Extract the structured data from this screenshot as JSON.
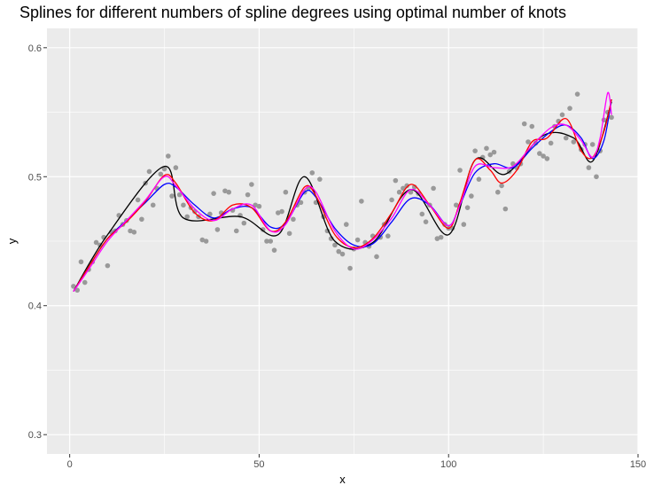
{
  "chart_data": {
    "type": "scatter",
    "title": "Splines for different numbers of spline degrees using optimal number of knots",
    "xlabel": "x",
    "ylabel": "y",
    "xlim": [
      -6,
      150
    ],
    "ylim": [
      0.285,
      0.615
    ],
    "x_ticks": [
      0,
      50,
      100,
      150
    ],
    "y_ticks": [
      0.3,
      0.4,
      0.5,
      0.6
    ],
    "x_tick_labels": [
      "0",
      "50",
      "100",
      "150"
    ],
    "y_tick_labels": [
      "0.3",
      "0.4",
      "0.5",
      "0.6"
    ],
    "grid": true,
    "background": "#ebebeb",
    "grid_color": "#ffffff",
    "points": {
      "color": "#999999",
      "x": [
        1,
        2,
        3,
        4,
        5,
        6,
        7,
        8,
        9,
        10,
        11,
        12,
        13,
        14,
        15,
        16,
        17,
        18,
        19,
        20,
        21,
        22,
        23,
        24,
        25,
        26,
        27,
        28,
        29,
        30,
        31,
        32,
        33,
        34,
        35,
        36,
        37,
        38,
        39,
        40,
        41,
        42,
        43,
        44,
        45,
        46,
        47,
        48,
        49,
        50,
        51,
        52,
        53,
        54,
        55,
        56,
        57,
        58,
        59,
        60,
        61,
        62,
        63,
        64,
        65,
        66,
        67,
        68,
        69,
        70,
        71,
        72,
        73,
        74,
        75,
        76,
        77,
        78,
        79,
        80,
        81,
        82,
        83,
        84,
        85,
        86,
        87,
        88,
        89,
        90,
        91,
        92,
        93,
        94,
        95,
        96,
        97,
        98,
        99,
        100,
        101,
        102,
        103,
        104,
        105,
        106,
        107,
        108,
        109,
        110,
        111,
        112,
        113,
        114,
        115,
        116,
        117,
        118,
        119,
        120,
        121,
        122,
        123,
        124,
        125,
        126,
        127,
        128,
        129,
        130,
        131,
        132,
        133,
        134,
        135,
        136,
        137,
        138,
        139,
        140,
        141,
        142,
        143
      ],
      "y": [
        0.415,
        0.412,
        0.434,
        0.418,
        0.428,
        0.434,
        0.449,
        0.447,
        0.453,
        0.431,
        0.457,
        0.458,
        0.47,
        0.463,
        0.466,
        0.458,
        0.457,
        0.482,
        0.467,
        0.495,
        0.504,
        0.478,
        0.491,
        0.502,
        0.506,
        0.516,
        0.485,
        0.507,
        0.486,
        0.478,
        0.469,
        0.476,
        0.473,
        0.469,
        0.451,
        0.45,
        0.471,
        0.487,
        0.459,
        0.472,
        0.489,
        0.488,
        0.474,
        0.458,
        0.47,
        0.464,
        0.486,
        0.494,
        0.478,
        0.477,
        0.459,
        0.45,
        0.45,
        0.443,
        0.472,
        0.473,
        0.488,
        0.456,
        0.467,
        0.478,
        0.48,
        0.488,
        0.491,
        0.503,
        0.48,
        0.498,
        0.469,
        0.458,
        0.452,
        0.447,
        0.442,
        0.44,
        0.463,
        0.429,
        0.444,
        0.451,
        0.481,
        0.449,
        0.446,
        0.454,
        0.438,
        0.453,
        0.463,
        0.454,
        0.482,
        0.497,
        0.488,
        0.491,
        0.493,
        0.488,
        0.492,
        0.487,
        0.471,
        0.465,
        0.478,
        0.491,
        0.452,
        0.453,
        0.463,
        0.46,
        0.46,
        0.478,
        0.505,
        0.463,
        0.476,
        0.485,
        0.52,
        0.498,
        0.515,
        0.522,
        0.517,
        0.519,
        0.488,
        0.493,
        0.475,
        0.504,
        0.51,
        0.507,
        0.51,
        0.541,
        0.527,
        0.539,
        0.526,
        0.518,
        0.516,
        0.514,
        0.526,
        0.539,
        0.543,
        0.548,
        0.53,
        0.553,
        0.527,
        0.564,
        0.521,
        0.525,
        0.507,
        0.525,
        0.5,
        0.52,
        0.544,
        0.55,
        0.546
      ]
    },
    "series": [
      {
        "color": "#000000",
        "x": [
          1,
          10,
          25,
          30,
          45,
          55,
          62,
          70,
          80,
          90,
          100,
          107,
          115,
          125,
          133,
          138,
          143
        ],
        "y": [
          0.411,
          0.455,
          0.508,
          0.468,
          0.469,
          0.455,
          0.5,
          0.45,
          0.449,
          0.49,
          0.455,
          0.513,
          0.502,
          0.532,
          0.53,
          0.512,
          0.558
        ]
      },
      {
        "color": "#0000ff",
        "x": [
          1,
          5,
          10,
          15,
          20,
          25,
          28,
          33,
          38,
          43,
          48,
          53,
          57,
          62,
          65,
          70,
          75,
          80,
          85,
          90,
          95,
          100,
          103,
          107,
          112,
          117,
          122,
          127,
          131,
          135,
          138,
          141,
          143
        ],
        "y": [
          0.411,
          0.43,
          0.452,
          0.466,
          0.48,
          0.494,
          0.492,
          0.478,
          0.468,
          0.475,
          0.476,
          0.461,
          0.464,
          0.488,
          0.484,
          0.46,
          0.447,
          0.448,
          0.465,
          0.483,
          0.478,
          0.462,
          0.478,
          0.503,
          0.51,
          0.507,
          0.522,
          0.535,
          0.54,
          0.53,
          0.514,
          0.528,
          0.56
        ]
      },
      {
        "color": "#ff0000",
        "x": [
          1,
          5,
          10,
          15,
          20,
          25,
          28,
          33,
          38,
          43,
          48,
          53,
          57,
          62,
          65,
          70,
          75,
          80,
          85,
          90,
          95,
          100,
          103,
          107,
          111,
          114,
          118,
          122,
          126,
          131,
          135,
          138,
          141,
          143
        ],
        "y": [
          0.411,
          0.43,
          0.452,
          0.465,
          0.481,
          0.501,
          0.495,
          0.472,
          0.466,
          0.478,
          0.476,
          0.458,
          0.465,
          0.492,
          0.485,
          0.455,
          0.445,
          0.452,
          0.472,
          0.494,
          0.478,
          0.46,
          0.48,
          0.513,
          0.505,
          0.495,
          0.505,
          0.527,
          0.53,
          0.545,
          0.52,
          0.515,
          0.535,
          0.56
        ]
      },
      {
        "color": "#ff00ff",
        "x": [
          1,
          5,
          10,
          15,
          20,
          25,
          28,
          33,
          38,
          43,
          48,
          53,
          57,
          62,
          65,
          70,
          75,
          80,
          85,
          90,
          95,
          100,
          103,
          107,
          112,
          117,
          122,
          127,
          131,
          135,
          138,
          140,
          142,
          143
        ],
        "y": [
          0.411,
          0.428,
          0.45,
          0.466,
          0.482,
          0.5,
          0.493,
          0.475,
          0.466,
          0.475,
          0.478,
          0.458,
          0.463,
          0.49,
          0.488,
          0.458,
          0.444,
          0.451,
          0.468,
          0.49,
          0.478,
          0.462,
          0.478,
          0.508,
          0.507,
          0.508,
          0.524,
          0.538,
          0.54,
          0.528,
          0.515,
          0.53,
          0.565,
          0.548
        ]
      }
    ]
  }
}
